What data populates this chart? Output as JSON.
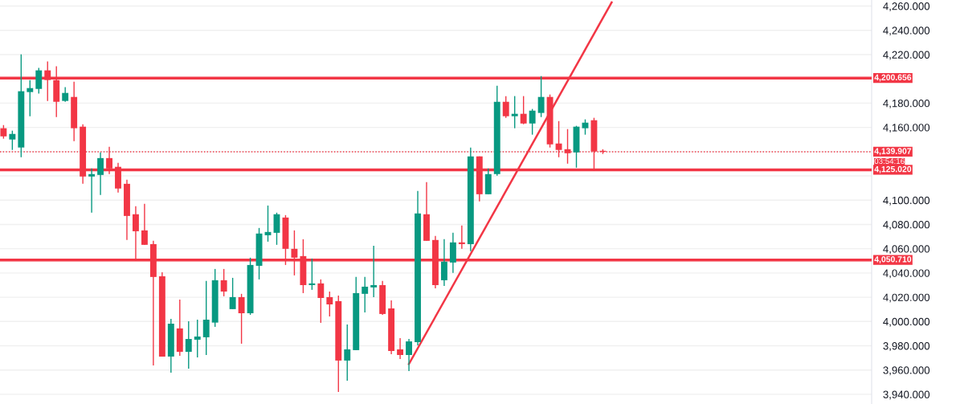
{
  "chart_data": {
    "type": "candlestick",
    "categories": [
      null,
      null,
      null,
      null,
      null,
      null,
      null,
      null,
      null,
      null,
      null,
      null,
      null,
      null,
      null,
      null,
      null,
      null,
      null,
      null,
      null,
      null,
      null,
      null,
      null,
      null,
      null,
      null,
      null,
      null,
      null,
      null,
      null,
      null,
      null,
      null,
      null,
      null,
      null,
      null,
      null,
      null,
      null,
      null,
      null,
      null,
      null,
      null,
      null,
      null,
      null,
      null,
      null,
      null,
      null,
      null,
      null,
      null,
      null,
      null,
      null,
      null,
      null,
      null,
      null,
      null,
      null,
      null,
      null,
      null,
      null,
      null,
      null,
      null,
      null,
      null,
      null,
      null,
      null,
      null,
      null,
      null,
      null,
      null,
      null,
      null,
      null,
      null,
      null,
      null,
      null,
      null,
      null,
      null,
      null,
      null,
      null,
      null,
      null
    ],
    "ohlc": [
      [
        4159.3,
        4161.9,
        4150.7,
        4152.6
      ],
      [
        4150.0,
        4157.3,
        4141.4,
        4154.6
      ],
      [
        4143.4,
        4220.2,
        4135.4,
        4189.8
      ],
      [
        4189.1,
        4199.0,
        4169.2,
        4192.4
      ],
      [
        4191.7,
        4209.0,
        4187.8,
        4207.0
      ],
      [
        4207.0,
        4214.3,
        4181.8,
        4199.0
      ],
      [
        4199.0,
        4210.3,
        4168.5,
        4181.1
      ],
      [
        4181.8,
        4193.1,
        4181.1,
        4188.4
      ],
      [
        4185.1,
        4197.7,
        4148.7,
        4159.3
      ],
      [
        4160.6,
        4162.6,
        4113.5,
        4119.5
      ],
      [
        4119.5,
        4126.1,
        4089.7,
        4121.5
      ],
      [
        4120.8,
        4139.4,
        4104.3,
        4134.7
      ],
      [
        4134.7,
        4144.0,
        4121.5,
        4126.1
      ],
      [
        4127.5,
        4130.8,
        4106.3,
        4109.6
      ],
      [
        4113.5,
        4116.9,
        4067.2,
        4087.0
      ],
      [
        4088.4,
        4095.0,
        4050.6,
        4074.4
      ],
      [
        4075.1,
        4097.0,
        4063.2,
        4063.2
      ],
      [
        4063.8,
        4066.5,
        3963.8,
        4036.7
      ],
      [
        4037.3,
        4040.6,
        3971.1,
        3971.1
      ],
      [
        3971.1,
        4002.2,
        3957.8,
        3998.2
      ],
      [
        3994.3,
        4018.1,
        3971.7,
        3975.0
      ],
      [
        3975.0,
        4000.2,
        3961.1,
        3985.6
      ],
      [
        3985.0,
        4001.5,
        3970.4,
        3987.6
      ],
      [
        3987.0,
        4033.4,
        3972.4,
        4001.5
      ],
      [
        3999.1,
        4043.3,
        3995.6,
        4034.0
      ],
      [
        4034.0,
        4043.3,
        4020.8,
        4024.7
      ],
      [
        4010.2,
        4036.0,
        4010.2,
        4020.1
      ],
      [
        4020.1,
        4022.8,
        3981.7,
        4006.8
      ],
      [
        4006.8,
        4052.6,
        4005.5,
        4046.6
      ],
      [
        4045.9,
        4077.1,
        4034.7,
        4072.5
      ],
      [
        4071.1,
        4095.6,
        4065.8,
        4073.8
      ],
      [
        4073.1,
        4089.7,
        4063.2,
        4088.4
      ],
      [
        4085.7,
        4087.7,
        4046.6,
        4059.9
      ],
      [
        4059.9,
        4075.1,
        4038.0,
        4052.6
      ],
      [
        4053.9,
        4067.8,
        4023.4,
        4030.0
      ],
      [
        4030.0,
        4051.9,
        4026.1,
        4031.4
      ],
      [
        4031.4,
        4034.7,
        3998.9,
        4019.4
      ],
      [
        4020.1,
        4024.7,
        4004.2,
        4014.1
      ],
      [
        4016.8,
        4021.4,
        3941.9,
        3967.8
      ],
      [
        3967.8,
        3997.6,
        3951.2,
        3977.0
      ],
      [
        3976.4,
        4036.7,
        3976.4,
        4023.4
      ],
      [
        4022.8,
        4036.7,
        4007.5,
        4028.7
      ],
      [
        4028.1,
        4062.5,
        4020.1,
        4030.0
      ],
      [
        4030.0,
        4033.4,
        4005.5,
        4006.2
      ],
      [
        4010.8,
        4017.4,
        3973.0,
        3975.7
      ],
      [
        3977.0,
        3986.3,
        3969.1,
        3972.4
      ],
      [
        3972.4,
        3985.6,
        3959.1,
        3983.6
      ],
      [
        3983.0,
        4107.6,
        3980.3,
        4089.0
      ],
      [
        4088.4,
        4114.9,
        4066.5,
        4066.5
      ],
      [
        4067.2,
        4070.5,
        4027.4,
        4030.0
      ],
      [
        4034.0,
        4067.8,
        4029.4,
        4049.3
      ],
      [
        4048.6,
        4073.1,
        4040.0,
        4065.2
      ],
      [
        4065.2,
        4079.1,
        4059.9,
        4063.8
      ],
      [
        4063.8,
        4143.4,
        4057.9,
        4136.1
      ],
      [
        4136.1,
        4136.1,
        4099.0,
        4104.9
      ],
      [
        4104.9,
        4126.1,
        4104.9,
        4121.5
      ],
      [
        4121.5,
        4194.4,
        4120.2,
        4181.1
      ],
      [
        4181.1,
        4185.8,
        4167.9,
        4169.2
      ],
      [
        4169.2,
        4185.8,
        4159.3,
        4171.2
      ],
      [
        4171.2,
        4185.8,
        4162.6,
        4163.2
      ],
      [
        4163.2,
        4175.2,
        4154.0,
        4173.8
      ],
      [
        4171.9,
        4202.3,
        4168.5,
        4185.1
      ],
      [
        4185.1,
        4187.1,
        4143.4,
        4146.0
      ],
      [
        4146.7,
        4165.2,
        4135.4,
        4141.4
      ],
      [
        4142.0,
        4158.6,
        4130.1,
        4138.7
      ],
      [
        4139.4,
        4161.3,
        4126.8,
        4160.6
      ],
      [
        4159.3,
        4166.6,
        4154.0,
        4163.9
      ],
      [
        4165.9,
        4167.9,
        4124.1,
        4140.1
      ],
      [
        4140.7,
        4142.0,
        4138.1,
        4139.9
      ],
      null,
      null,
      null,
      null,
      null,
      null,
      null,
      null,
      null,
      null,
      null,
      null,
      null,
      null,
      null,
      null,
      null,
      null,
      null,
      null,
      null,
      null,
      null,
      null,
      null,
      null,
      null,
      null,
      null,
      null
    ],
    "colors": [
      "#f23645",
      "#089981",
      "#089981",
      "#089981",
      "#089981",
      "#f23645",
      "#f23645",
      "#089981",
      "#f23645",
      "#f23645",
      "#089981",
      "#089981",
      "#f23645",
      "#f23645",
      "#f23645",
      "#f23645",
      "#f23645",
      "#f23645",
      "#f23645",
      "#089981",
      "#f23645",
      "#089981",
      "#089981",
      "#089981",
      "#089981",
      "#f23645",
      "#089981",
      "#f23645",
      "#089981",
      "#089981",
      "#089981",
      "#089981",
      "#f23645",
      "#f23645",
      "#f23645",
      "#089981",
      "#f23645",
      "#f23645",
      "#f23645",
      "#089981",
      "#089981",
      "#089981",
      "#089981",
      "#f23645",
      "#f23645",
      "#f23645",
      "#089981",
      "#089981",
      "#f23645",
      "#f23645",
      "#089981",
      "#089981",
      "#f23645",
      "#089981",
      "#f23645",
      "#089981",
      "#089981",
      "#f23645",
      "#089981",
      "#f23645",
      "#089981",
      "#089981",
      "#f23645",
      "#f23645",
      "#f23645",
      "#089981",
      "#089981",
      "#f23645",
      "#f23645",
      null,
      null,
      null,
      null,
      null,
      null,
      null,
      null,
      null,
      null,
      null,
      null,
      null,
      null,
      null,
      null,
      null,
      null,
      null,
      null,
      null,
      null,
      null,
      null,
      null,
      null,
      null,
      null,
      null,
      null
    ],
    "series": [
      {
        "type": "line",
        "color": "#f23645",
        "values": [
          null,
          null,
          null,
          null,
          null,
          null,
          null,
          null,
          null,
          null,
          null,
          null,
          null,
          null,
          null,
          null,
          null,
          null,
          null,
          null,
          null,
          null,
          null,
          null,
          null,
          null,
          null,
          null,
          null,
          null,
          null,
          null,
          null,
          null,
          null,
          null,
          null,
          null,
          null,
          null,
          null,
          null,
          null,
          null,
          null,
          null,
          3965,
          null,
          null,
          null,
          null,
          null,
          null,
          null,
          null,
          null,
          null,
          null,
          null,
          null,
          null,
          null,
          null,
          null,
          null,
          null,
          null,
          null,
          null,
          4263,
          null,
          null,
          null,
          null,
          null,
          null,
          null,
          null,
          null,
          null,
          null,
          null,
          null,
          null,
          null,
          null,
          null,
          null,
          null,
          null,
          null,
          null,
          null,
          null,
          null,
          null,
          null,
          null,
          null
        ]
      }
    ],
    "ylim": [
      3932,
      4265
    ],
    "yticks": [
      {
        "value": 3940,
        "label": "3,940.000"
      },
      {
        "value": 3960,
        "label": "3,960.000"
      },
      {
        "value": 3980,
        "label": "3,980.000"
      },
      {
        "value": 4000,
        "label": "4,000.000"
      },
      {
        "value": 4020,
        "label": "4,020.000"
      },
      {
        "value": 4040,
        "label": "4,040.000"
      },
      {
        "value": 4060,
        "label": "4,060.000"
      },
      {
        "value": 4080,
        "label": "4,080.000"
      },
      {
        "value": 4100,
        "label": "4,100.000"
      },
      {
        "value": 4120,
        "label": null
      },
      {
        "value": 4140,
        "label": null
      },
      {
        "value": 4160,
        "label": "4,160.000"
      },
      {
        "value": 4180,
        "label": "4,180.000"
      },
      {
        "value": 4200,
        "label": null
      },
      {
        "value": 4220,
        "label": "4,220.000"
      },
      {
        "value": 4240,
        "label": "4,240.000"
      },
      {
        "value": 4260,
        "label": "4,260.000"
      }
    ],
    "ref_lines": [
      {
        "axis": "y",
        "value": 4200.656,
        "label": "4,200.656",
        "color": "#f23645",
        "line_style": "solid"
      },
      {
        "axis": "y",
        "value": 4125.02,
        "label": "4,125.020",
        "color": "#f23645",
        "line_style": "solid"
      },
      {
        "axis": "y",
        "value": 4050.71,
        "label": "4,050.710",
        "color": "#f23645",
        "line_style": "solid"
      },
      {
        "axis": "y",
        "value": 4139.907,
        "label": "4,139.907",
        "color": "#f23645",
        "line_style": "dotted"
      }
    ],
    "annotations": [
      "03:54:16"
    ],
    "grid": "y",
    "legend": false
  }
}
